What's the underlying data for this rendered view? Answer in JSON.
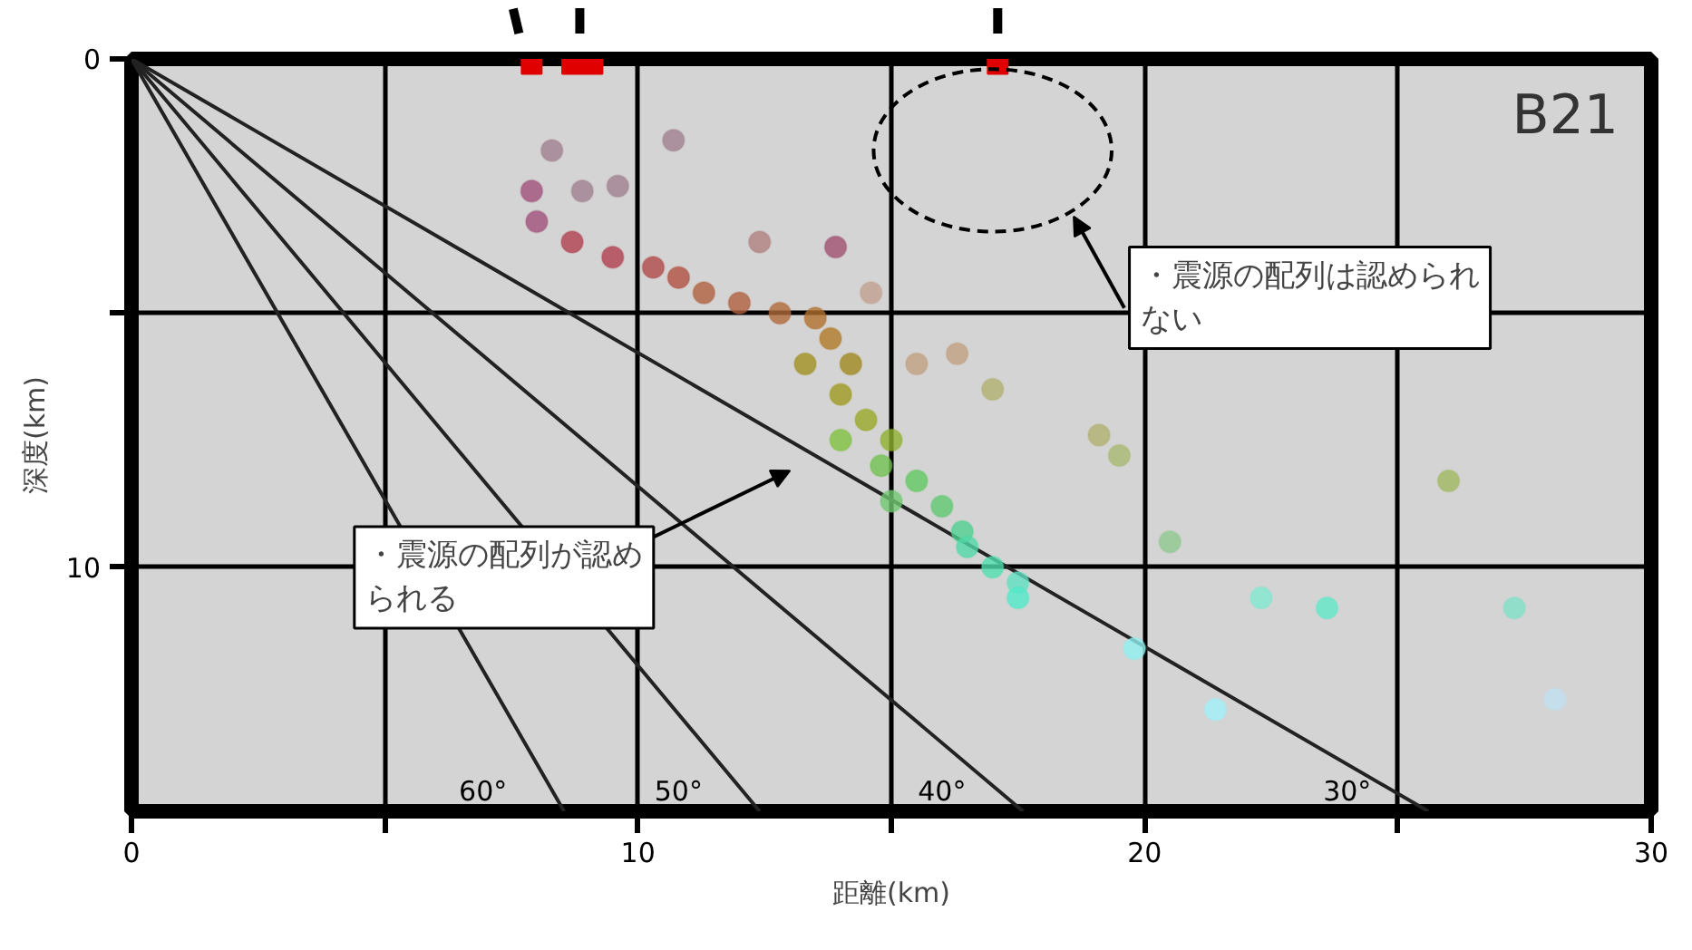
{
  "chart_data": {
    "type": "scatter",
    "xlabel": "距離(km)",
    "ylabel": "深度(km)",
    "xlim": [
      0,
      30
    ],
    "ylim": [
      14.8,
      0
    ],
    "xticks": [
      0,
      {
        "value": 5,
        "label": null
      },
      10,
      {
        "value": 15,
        "label": null
      },
      20,
      {
        "value": 25,
        "label": null
      },
      30
    ],
    "yticks": [
      0,
      {
        "value": 5,
        "label": null
      },
      10
    ],
    "grid": true,
    "series": [
      {
        "type": "line",
        "name": "60°",
        "color": "#222222",
        "x": [
          0,
          8.54
        ],
        "values": [
          0,
          14.8
        ]
      },
      {
        "type": "line",
        "name": "50°",
        "color": "#222222",
        "x": [
          0,
          12.4
        ],
        "values": [
          0,
          14.8
        ]
      },
      {
        "type": "line",
        "name": "40°",
        "color": "#222222",
        "x": [
          0,
          17.6
        ],
        "values": [
          0,
          14.8
        ]
      },
      {
        "type": "line",
        "name": "30°",
        "color": "#222222",
        "x": [
          0,
          25.6
        ],
        "values": [
          0,
          14.8
        ]
      },
      {
        "marker": "circle",
        "x": [
          7.9,
          8.0,
          8.3,
          8.9,
          9.6,
          10.7,
          8.7,
          9.5,
          10.3,
          10.8,
          12.4,
          13.9,
          11.3,
          12.0,
          12.8,
          13.5,
          14.6,
          13.8,
          14.2,
          15.5,
          16.3,
          13.3,
          14.0,
          14.5,
          15.0,
          17.0,
          14.0,
          14.8,
          15.5,
          16.0,
          15.0,
          16.4,
          19.1,
          19.5,
          20.5,
          26.0,
          16.5,
          17.0,
          17.5,
          17.5,
          19.8,
          21.4,
          22.3,
          23.6,
          27.3,
          28.1
        ],
        "values": [
          2.6,
          3.2,
          1.8,
          2.6,
          2.5,
          1.6,
          3.6,
          3.9,
          4.1,
          4.3,
          3.6,
          3.7,
          4.6,
          4.8,
          5.0,
          5.1,
          4.6,
          5.5,
          6.0,
          6.0,
          5.8,
          6.0,
          6.6,
          7.1,
          7.5,
          6.5,
          7.5,
          8.0,
          8.3,
          8.8,
          8.7,
          9.3,
          7.4,
          7.8,
          9.5,
          8.3,
          9.6,
          10.0,
          10.3,
          10.6,
          11.6,
          12.8,
          10.6,
          10.8,
          10.8,
          12.6
        ],
        "colors": [
          "#a0507a",
          "#a0507a",
          "#a08090",
          "#a08090",
          "#a08090",
          "#a08090",
          "#b04050",
          "#b04050",
          "#b04a48",
          "#b05040",
          "#b08080",
          "#a05070",
          "#b06040",
          "#b06040",
          "#b06a3a",
          "#b07030",
          "#c0a090",
          "#b07a28",
          "#a08820",
          "#c0a080",
          "#c0a080",
          "#a09020",
          "#a09a20",
          "#98a828",
          "#90b030",
          "#b0b070",
          "#80c040",
          "#70c050",
          "#60c860",
          "#60c870",
          "#70c870",
          "#50d090",
          "#b0b070",
          "#a8b870",
          "#90c890",
          "#a0b860",
          "#50d8a8",
          "#50e0b0",
          "#60e0c0",
          "#50e8c8",
          "#90f0f0",
          "#a0f0f8",
          "#80e8d0",
          "#60e8c8",
          "#80e0c8",
          "#c0e0f0"
        ]
      },
      {
        "type": "scatter",
        "marker": "square",
        "color": "#e00000",
        "x": [
          7.9,
          8.7,
          9.1,
          17.1
        ],
        "values": [
          0.1,
          0.1,
          0.1,
          0.1
        ]
      }
    ],
    "annotations": [
      "B21",
      "・震源の配列が認められる",
      "・震源の配列は認められない"
    ]
  }
}
